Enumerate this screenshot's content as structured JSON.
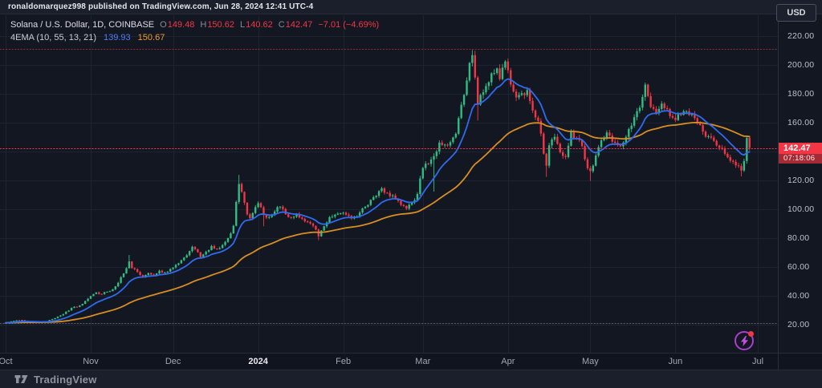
{
  "topbar": {
    "text": "ronaldomarquez998 published on TradingView.com, Jun 28, 2024 12:41 UTC-4"
  },
  "legend": {
    "symbol": "Solana / U.S. Dollar, 1D, COINBASE",
    "o_label": "O",
    "o": "149.48",
    "h_label": "H",
    "h": "150.62",
    "l_label": "L",
    "l": "140.62",
    "c_label": "C",
    "c": "142.47",
    "change": "−7.01 (−4.69%)",
    "indicator": {
      "name": "4EMA (10, 55, 13, 21)",
      "value_fast": "139.93",
      "value_slow": "150.67"
    }
  },
  "price_axis": {
    "currency_button": "USD",
    "labels": [
      {
        "text": "220.00",
        "price": 220
      },
      {
        "text": "200.00",
        "price": 200
      },
      {
        "text": "180.00",
        "price": 180
      },
      {
        "text": "160.00",
        "price": 160
      },
      {
        "text": "120.00",
        "price": 120
      },
      {
        "text": "100.00",
        "price": 100
      },
      {
        "text": "80.00",
        "price": 80
      },
      {
        "text": "60.00",
        "price": 60
      },
      {
        "text": "40.00",
        "price": 40
      },
      {
        "text": "20.00",
        "price": 20
      }
    ],
    "price_tag": {
      "price": "142.47",
      "countdown": "07:18:06"
    }
  },
  "footer": {
    "brand": "TradingView"
  },
  "chart_data": {
    "type": "candlestick",
    "title": "Solana / U.S. Dollar, 1D, COINBASE",
    "interval": "1D",
    "exchange": "COINBASE",
    "range_start": "Oct 2023",
    "range_end": "Jul 2024",
    "days_total": 274,
    "y_axis": {
      "min": 0,
      "max": 234,
      "tick_step": 20,
      "grid_ticks": [
        20,
        40,
        60,
        80,
        100,
        120,
        140,
        160,
        180,
        200,
        220
      ]
    },
    "month_ticks": [
      {
        "label": "Oct",
        "day": 0
      },
      {
        "label": "Nov",
        "day": 31
      },
      {
        "label": "Dec",
        "day": 61
      },
      {
        "label": "2024",
        "day": 92,
        "major": true
      },
      {
        "label": "Feb",
        "day": 123
      },
      {
        "label": "Mar",
        "day": 152
      },
      {
        "label": "Apr",
        "day": 183
      },
      {
        "label": "May",
        "day": 213
      },
      {
        "label": "Jun",
        "day": 244
      },
      {
        "label": "Jul",
        "day": 274
      }
    ],
    "anchors": [
      [
        0,
        21.3
      ],
      [
        3,
        22.6
      ],
      [
        6,
        23.1
      ],
      [
        9,
        21.9
      ],
      [
        12,
        21.6
      ],
      [
        15,
        22.2
      ],
      [
        17,
        23.8
      ],
      [
        19,
        25.6
      ],
      [
        21,
        27.4
      ],
      [
        23,
        29.8
      ],
      [
        24,
        31.6
      ],
      [
        26,
        32.3
      ],
      [
        28,
        34.4
      ],
      [
        30,
        38.0
      ],
      [
        31,
        39.8
      ],
      [
        33,
        42.4
      ],
      [
        35,
        41.2
      ],
      [
        37,
        42.8
      ],
      [
        39,
        44.5
      ],
      [
        41,
        49.0
      ],
      [
        43,
        55.5
      ],
      [
        45,
        63.8
      ],
      [
        46,
        59.2
      ],
      [
        48,
        56.5
      ],
      [
        50,
        53.2
      ],
      [
        52,
        55.8
      ],
      [
        54,
        54.3
      ],
      [
        56,
        57.4
      ],
      [
        58,
        56.2
      ],
      [
        60,
        58.6
      ],
      [
        61,
        59.6
      ],
      [
        63,
        62.5
      ],
      [
        65,
        66.5
      ],
      [
        67,
        71.0
      ],
      [
        68,
        74.0
      ],
      [
        70,
        70.2
      ],
      [
        71,
        66.8
      ],
      [
        73,
        70.5
      ],
      [
        75,
        74.5
      ],
      [
        77,
        72.4
      ],
      [
        79,
        75.2
      ],
      [
        81,
        80.0
      ],
      [
        83,
        88.5
      ],
      [
        84,
        105.0
      ],
      [
        85,
        117.5
      ],
      [
        86,
        112.0
      ],
      [
        87,
        104.5
      ],
      [
        88,
        96.5
      ],
      [
        89,
        93.8
      ],
      [
        91,
        101.5
      ],
      [
        92,
        104.2
      ],
      [
        94,
        96.2
      ],
      [
        96,
        94.6
      ],
      [
        98,
        98.4
      ],
      [
        100,
        101.8
      ],
      [
        102,
        96.5
      ],
      [
        104,
        94.2
      ],
      [
        106,
        96.8
      ],
      [
        108,
        93.4
      ],
      [
        110,
        91.2
      ],
      [
        112,
        88.5
      ],
      [
        114,
        81.2
      ],
      [
        116,
        88.2
      ],
      [
        118,
        94.5
      ],
      [
        120,
        96.2
      ],
      [
        122,
        97.2
      ],
      [
        123,
        97.6
      ],
      [
        126,
        93.6
      ],
      [
        128,
        95.2
      ],
      [
        131,
        101.8
      ],
      [
        134,
        108.4
      ],
      [
        136,
        112.6
      ],
      [
        137,
        114.5
      ],
      [
        139,
        111.3
      ],
      [
        141,
        109.6
      ],
      [
        143,
        105.8
      ],
      [
        146,
        100.4
      ],
      [
        148,
        104.6
      ],
      [
        150,
        110.6
      ],
      [
        151,
        121.4
      ],
      [
        152,
        128.6
      ],
      [
        154,
        131.4
      ],
      [
        156,
        136.8
      ],
      [
        158,
        146.2
      ],
      [
        160,
        144.8
      ],
      [
        162,
        146.5
      ],
      [
        164,
        152.3
      ],
      [
        166,
        172.4
      ],
      [
        168,
        189.2
      ],
      [
        169,
        201.4
      ],
      [
        170,
        206.8
      ],
      [
        171,
        191.3
      ],
      [
        172,
        172.5
      ],
      [
        173,
        179.2
      ],
      [
        175,
        185.4
      ],
      [
        177,
        194.2
      ],
      [
        179,
        197.6
      ],
      [
        180,
        190.2
      ],
      [
        182,
        202.4
      ],
      [
        183,
        196.3
      ],
      [
        184,
        186.4
      ],
      [
        186,
        177.5
      ],
      [
        188,
        180.4
      ],
      [
        190,
        182.6
      ],
      [
        192,
        168.4
      ],
      [
        194,
        161.2
      ],
      [
        195,
        152.4
      ],
      [
        196,
        138.5
      ],
      [
        197,
        130.2
      ],
      [
        198,
        144.3
      ],
      [
        200,
        150.2
      ],
      [
        202,
        139.5
      ],
      [
        204,
        136.2
      ],
      [
        206,
        153.6
      ],
      [
        208,
        149.4
      ],
      [
        210,
        143.8
      ],
      [
        212,
        128.4
      ],
      [
        213,
        126.4
      ],
      [
        215,
        137.2
      ],
      [
        217,
        147.8
      ],
      [
        219,
        153.2
      ],
      [
        221,
        146.8
      ],
      [
        223,
        144.4
      ],
      [
        225,
        146.2
      ],
      [
        227,
        155.6
      ],
      [
        229,
        163.8
      ],
      [
        231,
        170.4
      ],
      [
        232,
        177.8
      ],
      [
        233,
        186.4
      ],
      [
        234,
        178.4
      ],
      [
        235,
        170.8
      ],
      [
        237,
        166.5
      ],
      [
        239,
        173.2
      ],
      [
        241,
        169.4
      ],
      [
        243,
        163.4
      ],
      [
        244,
        161.8
      ],
      [
        246,
        165.4
      ],
      [
        248,
        168.0
      ],
      [
        250,
        166.2
      ],
      [
        252,
        159.6
      ],
      [
        254,
        153.8
      ],
      [
        256,
        150.6
      ],
      [
        258,
        147.4
      ],
      [
        260,
        142.6
      ],
      [
        262,
        138.4
      ],
      [
        264,
        133.6
      ],
      [
        266,
        130.4
      ],
      [
        268,
        126.8
      ],
      [
        269,
        133.4
      ],
      [
        270,
        149.4
      ],
      [
        271,
        142.47
      ]
    ],
    "wick_overrides": {
      "45": {
        "h": 68.3
      },
      "85": {
        "h": 123.8
      },
      "94": {
        "l": 88.2
      },
      "114": {
        "l": 78.5
      },
      "156": {
        "l": 112.2
      },
      "170": {
        "h": 210.3
      },
      "172": {
        "l": 161.5
      },
      "197": {
        "l": 122.4
      },
      "213": {
        "l": 119.6
      },
      "268": {
        "l": 122.8
      }
    },
    "last_candle": {
      "o": 149.48,
      "h": 150.62,
      "l": 140.62,
      "c": 142.47
    },
    "emas": [
      {
        "period": 13,
        "color": "#2f6bf0",
        "last_value": 139.93
      },
      {
        "period": 55,
        "color": "#d78e22",
        "last_value": 150.67
      }
    ],
    "price_lines": [
      {
        "price": 210.9,
        "color": "#f23645",
        "opacity": 0.55
      },
      {
        "price": 142.47,
        "color": "#f23645",
        "opacity": 0.95
      },
      {
        "price": 21.3,
        "color": "#9aa0ab",
        "opacity": 0.5
      }
    ],
    "colors": {
      "up": "#2ebd85",
      "down": "#f23645",
      "grid": "#1d2330",
      "bg": "#131722"
    }
  }
}
